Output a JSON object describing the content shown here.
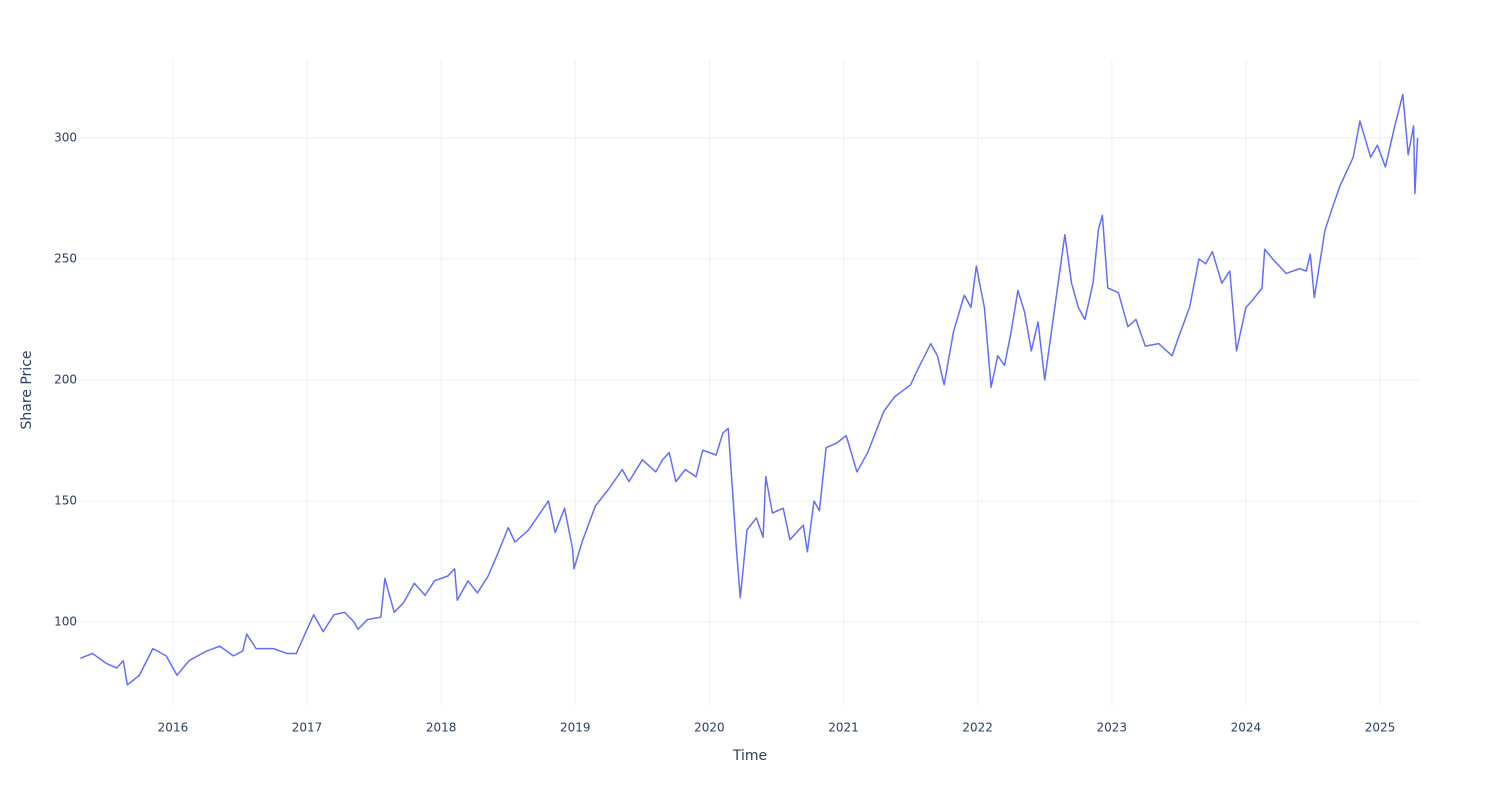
{
  "chart_data": {
    "type": "line",
    "x_label": "Time",
    "y_label": "Share Price",
    "color": "#636efa",
    "grid": true,
    "xlim": [
      2015.307,
      2025.298
    ],
    "ylim": [
      65.7,
      332.2
    ],
    "xticks": [
      2016,
      2017,
      2018,
      2019,
      2020,
      2021,
      2022,
      2023,
      2024,
      2025
    ],
    "yticks": [
      100,
      150,
      200,
      250,
      300
    ],
    "x": [
      2015.31,
      2015.4,
      2015.5,
      2015.58,
      2015.63,
      2015.66,
      2015.75,
      2015.85,
      2015.95,
      2016.03,
      2016.12,
      2016.25,
      2016.35,
      2016.45,
      2016.52,
      2016.55,
      2016.62,
      2016.75,
      2016.85,
      2016.92,
      2017.0,
      2017.05,
      2017.12,
      2017.2,
      2017.28,
      2017.35,
      2017.38,
      2017.45,
      2017.55,
      2017.58,
      2017.65,
      2017.72,
      2017.8,
      2017.88,
      2017.95,
      2018.05,
      2018.1,
      2018.12,
      2018.2,
      2018.27,
      2018.35,
      2018.42,
      2018.5,
      2018.55,
      2018.65,
      2018.75,
      2018.8,
      2018.85,
      2018.92,
      2018.98,
      2018.99,
      2019.05,
      2019.15,
      2019.25,
      2019.35,
      2019.4,
      2019.5,
      2019.6,
      2019.65,
      2019.7,
      2019.75,
      2019.82,
      2019.9,
      2019.95,
      2020.05,
      2020.1,
      2020.14,
      2020.18,
      2020.2,
      2020.23,
      2020.28,
      2020.35,
      2020.4,
      2020.42,
      2020.47,
      2020.55,
      2020.6,
      2020.7,
      2020.73,
      2020.78,
      2020.82,
      2020.87,
      2020.95,
      2021.02,
      2021.1,
      2021.18,
      2021.3,
      2021.38,
      2021.5,
      2021.55,
      2021.65,
      2021.7,
      2021.75,
      2021.82,
      2021.9,
      2021.95,
      2021.99,
      2022.05,
      2022.1,
      2022.15,
      2022.2,
      2022.25,
      2022.3,
      2022.35,
      2022.4,
      2022.45,
      2022.5,
      2022.55,
      2022.6,
      2022.65,
      2022.7,
      2022.75,
      2022.8,
      2022.86,
      2022.9,
      2022.93,
      2022.97,
      2023.05,
      2023.12,
      2023.18,
      2023.25,
      2023.35,
      2023.45,
      2023.5,
      2023.58,
      2023.65,
      2023.7,
      2023.75,
      2023.82,
      2023.88,
      2023.93,
      2024.0,
      2024.05,
      2024.12,
      2024.14,
      2024.2,
      2024.3,
      2024.4,
      2024.45,
      2024.48,
      2024.51,
      2024.59,
      2024.65,
      2024.7,
      2024.8,
      2024.85,
      2024.93,
      2024.98,
      2025.04,
      2025.11,
      2025.17,
      2025.21,
      2025.25,
      2025.26,
      2025.28
    ],
    "values": [
      85,
      87,
      83,
      81,
      84,
      74,
      78,
      89,
      86,
      78,
      84,
      88,
      90,
      86,
      88,
      95,
      89,
      89,
      87,
      87,
      97,
      103,
      96,
      103,
      104,
      100,
      97,
      101,
      102,
      118,
      104,
      108,
      116,
      111,
      117,
      119,
      122,
      109,
      117,
      112,
      119,
      128,
      139,
      133,
      138,
      146,
      150,
      137,
      147,
      130,
      122,
      133,
      148,
      155,
      163,
      158,
      167,
      162,
      167,
      170,
      158,
      163,
      160,
      171,
      169,
      178,
      180,
      148,
      131,
      110,
      138,
      143,
      135,
      160,
      145,
      147,
      134,
      140,
      129,
      150,
      146,
      172,
      174,
      177,
      162,
      170,
      187,
      193,
      198,
      204,
      215,
      210,
      198,
      220,
      235,
      230,
      247,
      230,
      197,
      210,
      206,
      220,
      237,
      228,
      212,
      224,
      200,
      220,
      240,
      260,
      240,
      230,
      225,
      240,
      262,
      268,
      238,
      236,
      222,
      225,
      214,
      215,
      210,
      218,
      230,
      250,
      248,
      253,
      240,
      245,
      212,
      230,
      233,
      238,
      254,
      250,
      244,
      246,
      245,
      252,
      234,
      262,
      272,
      280,
      292,
      307,
      292,
      297,
      288,
      305,
      318,
      293,
      305,
      277,
      300
    ]
  }
}
